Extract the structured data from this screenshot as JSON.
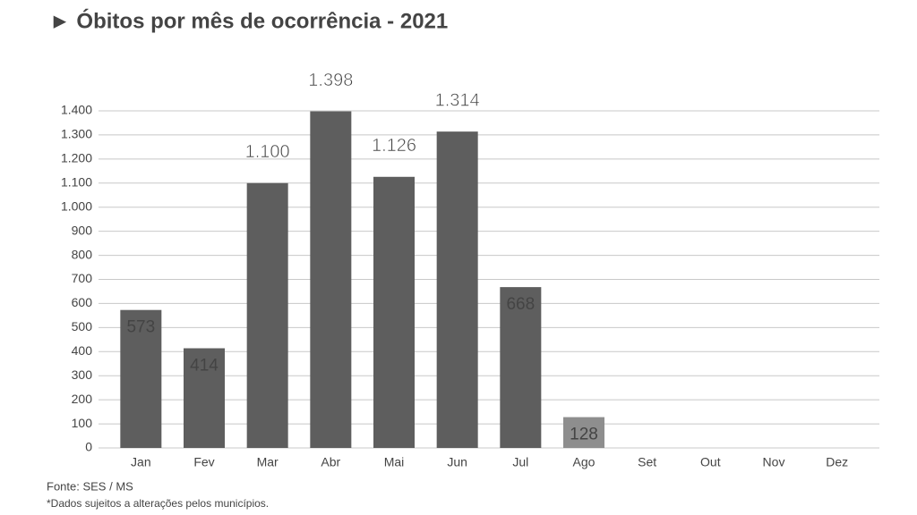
{
  "chart_data": {
    "type": "bar",
    "title": "► Óbitos por mês de ocorrência - 2021",
    "categories": [
      "Jan",
      "Fev",
      "Mar",
      "Abr",
      "Mai",
      "Jun",
      "Jul",
      "Ago",
      "Set",
      "Out",
      "Nov",
      "Dez"
    ],
    "values": [
      573,
      414,
      1100,
      1398,
      1126,
      1314,
      668,
      128,
      null,
      null,
      null,
      null
    ],
    "value_labels": [
      "573",
      "414",
      "1.100",
      "1.398",
      "1.126",
      "1.314",
      "668",
      "128",
      null,
      null,
      null,
      null
    ],
    "colors": [
      "#5e5e5e",
      "#5e5e5e",
      "#5e5e5e",
      "#5e5e5e",
      "#5e5e5e",
      "#5e5e5e",
      "#5e5e5e",
      "#8e8e8e",
      "#5e5e5e",
      "#5e5e5e",
      "#5e5e5e",
      "#5e5e5e"
    ],
    "ylim": [
      0,
      1400
    ],
    "yticks": [
      0,
      100,
      200,
      300,
      400,
      500,
      600,
      700,
      800,
      900,
      {
        "value": 1000,
        "label": "1.000"
      },
      {
        "value": 1100,
        "label": "1.100"
      },
      {
        "value": 1200,
        "label": "1.200"
      },
      {
        "value": 1300,
        "label": "1.300"
      },
      {
        "value": 1400,
        "label": "1.400"
      }
    ],
    "grid": true,
    "source": "Fonte: SES / MS",
    "note": "*Dados sujeitos a alterações pelos municípios."
  }
}
